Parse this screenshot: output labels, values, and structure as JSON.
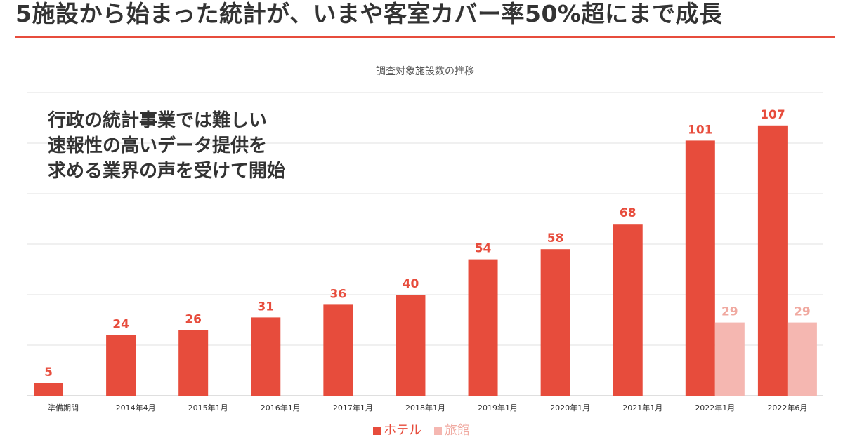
{
  "headline": "5施設から始まった統計が、いまや客室カバー率50%超にまで成長",
  "callout": {
    "line1": "行政の統計事業では難しい",
    "line2": "速報性の高いデータ提供を",
    "line3": "求める業界の声を受けて開始"
  },
  "colors": {
    "accent": "#e74c3c",
    "hotel": "#e74c3c",
    "ryokan": "#f5b7b1",
    "hotel_label": "#e74c3c",
    "ryokan_label": "#f0a9a0",
    "grid": "#e0e0e0",
    "text": "#333333",
    "muted": "#555555"
  },
  "chart_data": {
    "type": "bar",
    "title": "調査対象施設数の推移",
    "categories": [
      "準備期間",
      "2014年4月",
      "2015年1月",
      "2016年1月",
      "2017年1月",
      "2018年1月",
      "2019年1月",
      "2020年1月",
      "2021年1月",
      "2022年1月",
      "2022年6月"
    ],
    "series": [
      {
        "name": "ホテル",
        "values": [
          5,
          24,
          26,
          31,
          36,
          40,
          54,
          58,
          68,
          101,
          107
        ]
      },
      {
        "name": "旅館",
        "values": [
          null,
          null,
          null,
          null,
          null,
          null,
          null,
          null,
          null,
          29,
          29
        ]
      }
    ],
    "ylim": [
      0,
      120
    ],
    "grid": true,
    "data_labels": true,
    "legend_position": "bottom",
    "xlabel": "",
    "ylabel": ""
  }
}
